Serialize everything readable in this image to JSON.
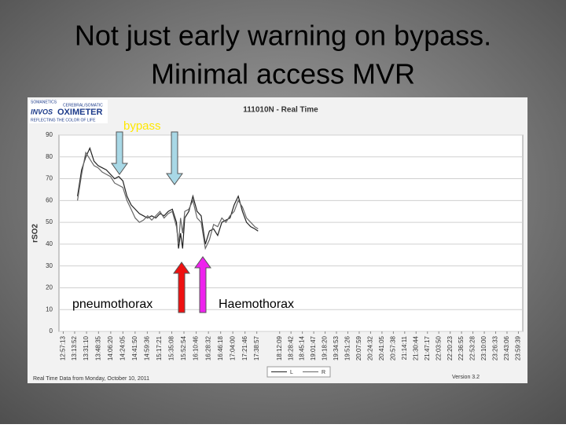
{
  "slide_title": [
    "Not just early warning on bypass.",
    "Minimal access MVR"
  ],
  "logo": [
    "SOMANETICS",
    "CEREBRAL/SOMATIC",
    "INVOS",
    "OXIMETER",
    "REFLECTING THE COLOR OF LIFE"
  ],
  "footer": {
    "left": "Real Time Data from Monday, October 10, 2011",
    "right": "Version 3.2"
  },
  "chart_data": {
    "type": "line",
    "title": "111010N - Real Time",
    "y_label": "rSO2",
    "annotations": [
      "bypass",
      "pneumothorax",
      "Haemothorax"
    ],
    "ylim": [
      0,
      90
    ],
    "yticks": [
      0,
      10,
      20,
      30,
      40,
      50,
      60,
      70,
      80,
      90
    ],
    "grid": true,
    "xlim": [
      12.85,
      24.1
    ],
    "xticks": [
      {
        "value": 12.954,
        "label": "12:57:13"
      },
      {
        "value": 13.231,
        "label": "13:13:52"
      },
      {
        "value": 13.519,
        "label": "13:31:10"
      },
      {
        "value": 13.81,
        "label": "13:48:35"
      },
      {
        "value": 14.106,
        "label": "14:06:20"
      },
      {
        "value": 14.401,
        "label": "14:24:05"
      },
      {
        "value": 14.697,
        "label": "14:41:50"
      },
      {
        "value": 14.993,
        "label": "14:59:36"
      },
      {
        "value": 15.289,
        "label": "15:17:21"
      },
      {
        "value": 15.586,
        "label": "15:35:08"
      },
      {
        "value": 15.882,
        "label": "15:52:54"
      },
      {
        "value": 16.179,
        "label": "16:10:46"
      },
      {
        "value": 16.476,
        "label": "16:28:32"
      },
      {
        "value": 16.772,
        "label": "16:46:18"
      },
      {
        "value": 17.067,
        "label": "17:04:00"
      },
      {
        "value": 17.363,
        "label": "17:21:46"
      },
      {
        "value": 17.649,
        "label": "17:38:57"
      },
      {
        "value": 18.203,
        "label": "18:12:09"
      },
      {
        "value": 18.478,
        "label": "18:28:42"
      },
      {
        "value": 18.754,
        "label": "18:45:14"
      },
      {
        "value": 19.03,
        "label": "19:01:47"
      },
      {
        "value": 19.306,
        "label": "19:18:20"
      },
      {
        "value": 19.581,
        "label": "19:34:53"
      },
      {
        "value": 19.857,
        "label": "19:51:26"
      },
      {
        "value": 20.133,
        "label": "20:07:59"
      },
      {
        "value": 20.409,
        "label": "20:24:32"
      },
      {
        "value": 20.685,
        "label": "20:41:05"
      },
      {
        "value": 20.961,
        "label": "20:57:38"
      },
      {
        "value": 21.236,
        "label": "21:14:11"
      },
      {
        "value": 21.512,
        "label": "21:30:44"
      },
      {
        "value": 21.788,
        "label": "21:47:17"
      },
      {
        "value": 22.064,
        "label": "22:03:50"
      },
      {
        "value": 22.34,
        "label": "22:20:23"
      },
      {
        "value": 22.615,
        "label": "22:36:55"
      },
      {
        "value": 22.891,
        "label": "22:53:28"
      },
      {
        "value": 23.167,
        "label": "23:10:00"
      },
      {
        "value": 23.443,
        "label": "23:26:33"
      },
      {
        "value": 23.718,
        "label": "23:43:06"
      },
      {
        "value": 23.994,
        "label": "23:59:39"
      }
    ],
    "x": [
      13.3,
      13.4,
      13.5,
      13.6,
      13.7,
      13.8,
      13.9,
      14.0,
      14.1,
      14.2,
      14.3,
      14.4,
      14.5,
      14.6,
      14.7,
      14.8,
      14.9,
      15.0,
      15.1,
      15.2,
      15.3,
      15.4,
      15.5,
      15.6,
      15.7,
      15.75,
      15.8,
      15.85,
      15.9,
      16.0,
      16.1,
      16.2,
      16.3,
      16.4,
      16.5,
      16.6,
      16.7,
      16.8,
      16.9,
      17.0,
      17.1,
      17.2,
      17.3,
      17.4,
      17.5,
      17.6,
      17.68
    ],
    "series": [
      {
        "name": "L",
        "color": "#222222",
        "values": [
          62,
          74,
          80,
          84,
          78,
          76,
          75,
          74,
          72,
          70,
          71,
          69,
          62,
          58,
          56,
          54,
          53,
          52,
          53,
          52,
          54,
          53,
          55,
          56,
          50,
          38,
          45,
          38,
          52,
          55,
          62,
          55,
          53,
          40,
          46,
          47,
          44,
          50,
          51,
          52,
          58,
          62,
          55,
          50,
          48,
          47,
          46
        ]
      },
      {
        "name": "R",
        "color": "#666666",
        "values": [
          60,
          72,
          82,
          79,
          76,
          75,
          73,
          72,
          71,
          68,
          67,
          66,
          60,
          56,
          52,
          50,
          51,
          53,
          51,
          53,
          55,
          52,
          54,
          55,
          48,
          40,
          52,
          45,
          55,
          56,
          60,
          52,
          50,
          38,
          42,
          49,
          48,
          52,
          50,
          53,
          55,
          60,
          57,
          52,
          50,
          48,
          47
        ]
      }
    ]
  }
}
